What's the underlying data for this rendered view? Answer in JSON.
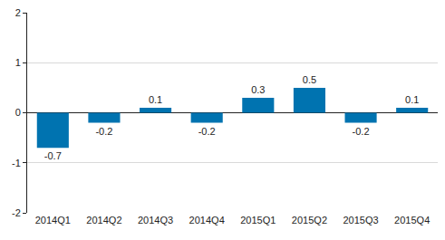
{
  "chart_data": {
    "type": "bar",
    "categories": [
      "2014Q1",
      "2014Q2",
      "2014Q3",
      "2014Q4",
      "2015Q1",
      "2015Q2",
      "2015Q3",
      "2015Q4"
    ],
    "values": [
      -0.7,
      -0.2,
      0.1,
      -0.2,
      0.3,
      0.5,
      -0.2,
      0.1
    ],
    "color": "#0073b0",
    "ylim": [
      -2,
      2
    ],
    "yticks": [
      -2,
      -1,
      0,
      1,
      2
    ],
    "grid": true,
    "data_labels": true
  }
}
